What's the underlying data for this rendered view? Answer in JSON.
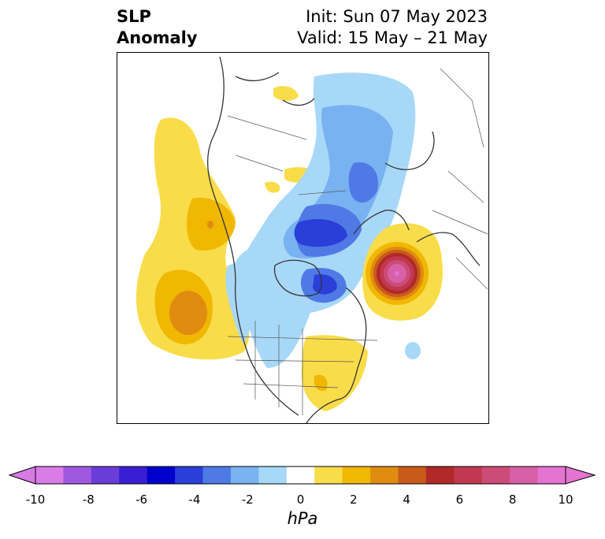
{
  "title": {
    "left_line1": "SLP",
    "left_line2": "Anomaly",
    "init": "Init: Sun 07 May 2023",
    "valid": "Valid: 15 May – 21 May"
  },
  "colorbar": {
    "unit": "hPa",
    "ticks": [
      "-10",
      "-8",
      "-6",
      "-4",
      "-2",
      "0",
      "2",
      "4",
      "6",
      "8",
      "10"
    ],
    "extend": "both",
    "colors": [
      "#d97ce8",
      "#a058e0",
      "#6a3cd8",
      "#3a1ed4",
      "#0000cc",
      "#2a3ed8",
      "#4f7ae6",
      "#78b2f0",
      "#a8d8f8",
      "#ffffff",
      "#f9dc4a",
      "#f0b800",
      "#e08c10",
      "#c85a1a",
      "#b02828",
      "#c03850",
      "#cc4c78",
      "#d860a8",
      "#e474d0"
    ],
    "low_arrow_color": "#d67ae6",
    "high_arrow_color": "#e474d0"
  },
  "map": {
    "projection": "polar-stereographic",
    "region": "North America / North Pacific / North Atlantic",
    "land_color": "#ffffff",
    "coast_color": "#333333",
    "features": [
      {
        "name": "positive anomaly centre over North Atlantic",
        "peak_hPa": 9
      },
      {
        "name": "negative anomaly trough over Hudson Bay / Canadian Arctic",
        "peak_hPa": -6
      },
      {
        "name": "positive anomalies over northeast Pacific",
        "peak_hPa": 5
      },
      {
        "name": "positive anomaly over eastern United States",
        "peak_hPa": 1
      }
    ]
  }
}
